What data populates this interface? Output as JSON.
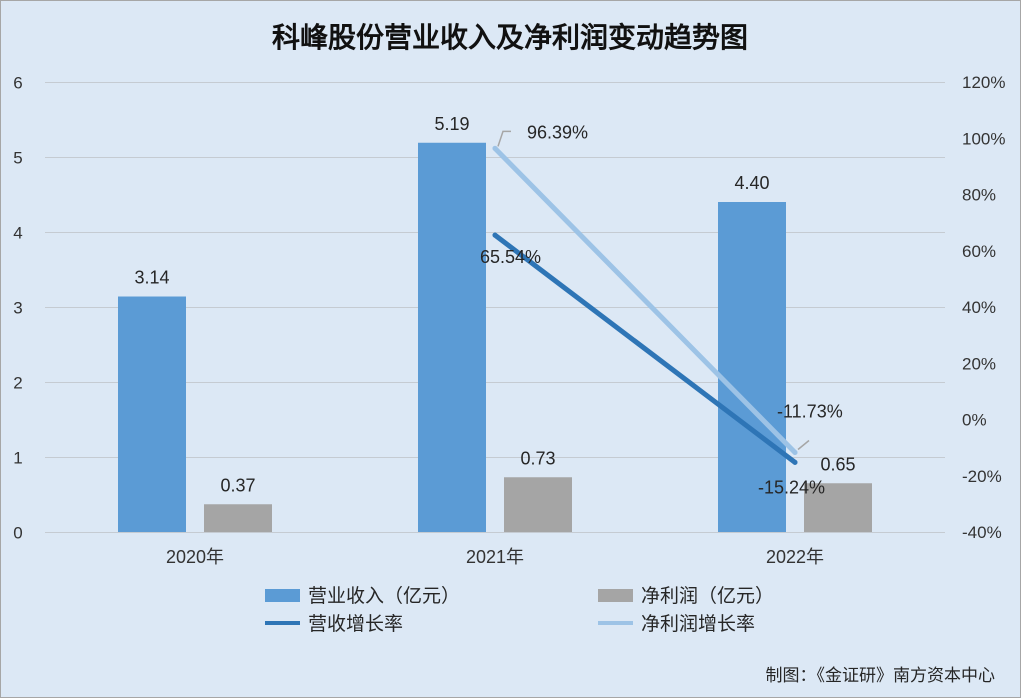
{
  "chart_data": {
    "type": "bar",
    "title": "科峰股份营业收入及净利润变动趋势图",
    "categories": [
      "2020年",
      "2021年",
      "2022年"
    ],
    "series": [
      {
        "name": "营业收入（亿元）",
        "type": "bar",
        "axis": "left",
        "color": "#5b9bd5",
        "values": [
          3.14,
          5.19,
          4.4
        ],
        "labels": [
          "3.14",
          "5.19",
          "4.40"
        ]
      },
      {
        "name": "净利润（亿元）",
        "type": "bar",
        "axis": "left",
        "color": "#a5a5a5",
        "values": [
          0.37,
          0.73,
          0.65
        ],
        "labels": [
          "0.37",
          "0.73",
          "0.65"
        ]
      },
      {
        "name": "营收增长率",
        "type": "line",
        "axis": "right",
        "color": "#2e75b6",
        "values": [
          null,
          65.54,
          -15.24
        ],
        "labels": [
          null,
          "65.54%",
          "-15.24%"
        ]
      },
      {
        "name": "净利润增长率",
        "type": "line",
        "axis": "right",
        "color": "#9dc3e6",
        "values": [
          null,
          96.39,
          -11.73
        ],
        "labels": [
          null,
          "96.39%",
          "-11.73%"
        ]
      }
    ],
    "y_left": {
      "min": 0,
      "max": 6,
      "ticks": [
        "0",
        "1",
        "2",
        "3",
        "4",
        "5",
        "6"
      ]
    },
    "y_right": {
      "min": -40,
      "max": 120,
      "ticks": [
        "-40%",
        "-20%",
        "0%",
        "20%",
        "40%",
        "60%",
        "80%",
        "100%",
        "120%"
      ]
    },
    "grid": true,
    "legend_position": "bottom"
  },
  "credit": "制图：《金证研》南方资本中心",
  "colors": {
    "background": "#dce8f5",
    "border": "#a6a6a6",
    "gridline": "#c5cbd2",
    "leader_line": "#a6a6a6"
  }
}
